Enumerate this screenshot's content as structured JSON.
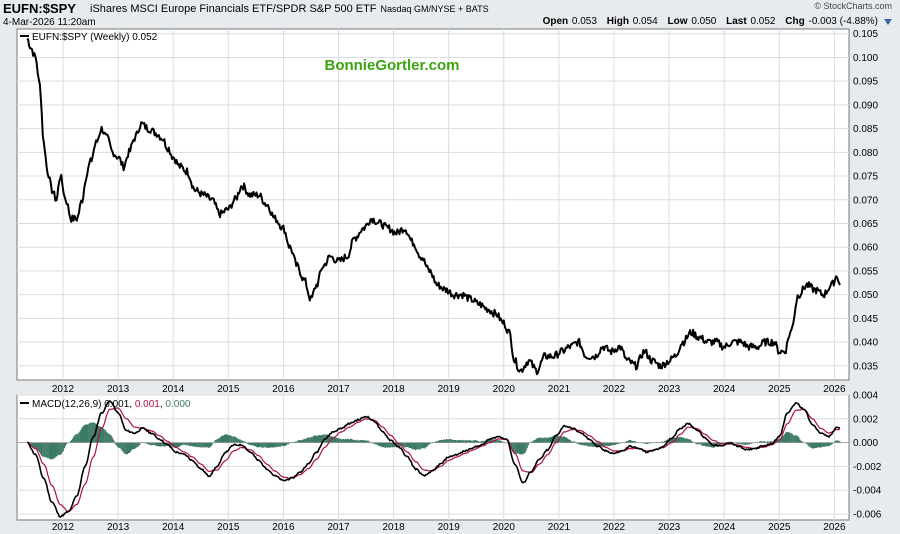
{
  "header": {
    "symbol": "EUFN:$SPY",
    "description": "iShares MSCI Europe Financials ETF/SPDR S&P 500 ETF",
    "exchange": "Nasdaq GM/NYSE + BATS",
    "credit": "© StockCharts.com",
    "datetime": "4-Mar-2026 11:20am",
    "ohlc": {
      "open_label": "Open",
      "open": "0.053",
      "high_label": "High",
      "high": "0.054",
      "low_label": "Low",
      "low": "0.050",
      "last_label": "Last",
      "last": "0.052",
      "chg_label": "Chg",
      "chg": "-0.003 (-4.88%)"
    }
  },
  "price_panel": {
    "legend": "EUFN:$SPY (Weekly) 0.052",
    "watermark": "BonnieGortler.com",
    "watermark_color": "#3aa312"
  },
  "macd_panel": {
    "legend_prefix": "MACD(12,26,9) 0.001, ",
    "legend_signal": "0.001",
    "legend_sep": ", ",
    "legend_hist": "0.000",
    "signal_color": "#b0104a",
    "hist_color": "#3d7a66"
  },
  "chart_data": [
    {
      "type": "line",
      "title": "EUFN:$SPY (Weekly) 0.052",
      "frequency": "weekly",
      "x_tick_labels": [
        "2012",
        "2013",
        "2014",
        "2015",
        "2016",
        "2017",
        "2018",
        "2019",
        "2020",
        "2021",
        "2022",
        "2023",
        "2024",
        "2025",
        "2026"
      ],
      "y_tick_labels": [
        "0.035",
        "0.040",
        "0.045",
        "0.050",
        "0.055",
        "0.060",
        "0.065",
        "0.070",
        "0.075",
        "0.080",
        "0.085",
        "0.090",
        "0.095",
        "0.100",
        "0.105"
      ],
      "ylim": [
        0.032,
        0.106
      ],
      "grid": true,
      "series": [
        {
          "x": [
            2011.35,
            2011.42,
            2011.5,
            2011.58,
            2011.65,
            2011.72,
            2011.8,
            2011.88,
            2011.95,
            2012.05,
            2012.15,
            2012.25,
            2012.35,
            2012.42,
            2012.5,
            2012.6,
            2012.7,
            2012.8,
            2012.9,
            2013.0,
            2013.1,
            2013.2,
            2013.3,
            2013.42,
            2013.55,
            2013.7,
            2013.8,
            2013.9,
            2014.0,
            2014.12,
            2014.25,
            2014.4,
            2014.55,
            2014.7,
            2014.85,
            2015.0,
            2015.12,
            2015.25,
            2015.4,
            2015.55,
            2015.7,
            2015.85,
            2016.0,
            2016.12,
            2016.25,
            2016.38,
            2016.5,
            2016.6,
            2016.72,
            2016.85,
            2017.0,
            2017.15,
            2017.3,
            2017.45,
            2017.6,
            2017.75,
            2017.9,
            2018.05,
            2018.2,
            2018.35,
            2018.5,
            2018.65,
            2018.8,
            2018.95,
            2019.1,
            2019.25,
            2019.4,
            2019.55,
            2019.7,
            2019.85,
            2020.0,
            2020.1,
            2020.2,
            2020.3,
            2020.45,
            2020.6,
            2020.75,
            2020.9,
            2021.05,
            2021.2,
            2021.35,
            2021.5,
            2021.65,
            2021.8,
            2021.95,
            2022.1,
            2022.25,
            2022.4,
            2022.55,
            2022.7,
            2022.85,
            2023.0,
            2023.1,
            2023.25,
            2023.4,
            2023.55,
            2023.7,
            2023.85,
            2024.0,
            2024.15,
            2024.3,
            2024.45,
            2024.6,
            2024.75,
            2024.9,
            2025.0,
            2025.1,
            2025.2,
            2025.35,
            2025.5,
            2025.65,
            2025.8,
            2025.95,
            2026.05,
            2026.1
          ],
          "values": [
            0.104,
            0.102,
            0.1,
            0.094,
            0.082,
            0.076,
            0.072,
            0.07,
            0.075,
            0.07,
            0.066,
            0.066,
            0.07,
            0.075,
            0.078,
            0.082,
            0.085,
            0.083,
            0.08,
            0.079,
            0.077,
            0.08,
            0.083,
            0.086,
            0.085,
            0.084,
            0.083,
            0.081,
            0.079,
            0.077,
            0.076,
            0.072,
            0.071,
            0.07,
            0.067,
            0.068,
            0.07,
            0.073,
            0.071,
            0.071,
            0.069,
            0.066,
            0.064,
            0.06,
            0.056,
            0.053,
            0.049,
            0.052,
            0.056,
            0.058,
            0.057,
            0.058,
            0.062,
            0.064,
            0.066,
            0.065,
            0.064,
            0.063,
            0.064,
            0.061,
            0.058,
            0.055,
            0.052,
            0.051,
            0.05,
            0.05,
            0.049,
            0.048,
            0.047,
            0.046,
            0.044,
            0.042,
            0.036,
            0.034,
            0.036,
            0.034,
            0.037,
            0.037,
            0.038,
            0.039,
            0.04,
            0.037,
            0.037,
            0.039,
            0.038,
            0.039,
            0.036,
            0.035,
            0.038,
            0.036,
            0.035,
            0.036,
            0.037,
            0.04,
            0.042,
            0.041,
            0.04,
            0.04,
            0.039,
            0.04,
            0.04,
            0.039,
            0.039,
            0.04,
            0.04,
            0.038,
            0.038,
            0.042,
            0.05,
            0.052,
            0.051,
            0.05,
            0.052,
            0.054,
            0.052
          ]
        }
      ]
    },
    {
      "type": "line",
      "title": "MACD(12,26,9) 0.001, 0.001, 0.000",
      "x_tick_labels": [
        "2012",
        "2013",
        "2014",
        "2015",
        "2016",
        "2017",
        "2018",
        "2019",
        "2020",
        "2021",
        "2022",
        "2023",
        "2024",
        "2025",
        "2026"
      ],
      "y_tick_labels": [
        "0.004",
        "0.002",
        "0.000",
        "-0.002",
        "-0.004",
        "-0.006"
      ],
      "ylim": [
        -0.0065,
        0.004
      ],
      "grid": true,
      "x": [
        2011.35,
        2011.5,
        2011.65,
        2011.8,
        2011.95,
        2012.1,
        2012.25,
        2012.4,
        2012.55,
        2012.7,
        2012.85,
        2013.0,
        2013.15,
        2013.3,
        2013.45,
        2013.6,
        2013.75,
        2013.9,
        2014.05,
        2014.2,
        2014.35,
        2014.5,
        2014.65,
        2014.8,
        2014.95,
        2015.1,
        2015.25,
        2015.4,
        2015.55,
        2015.7,
        2015.85,
        2016.0,
        2016.15,
        2016.3,
        2016.45,
        2016.6,
        2016.75,
        2016.9,
        2017.05,
        2017.2,
        2017.35,
        2017.5,
        2017.65,
        2017.8,
        2017.95,
        2018.1,
        2018.25,
        2018.4,
        2018.55,
        2018.7,
        2018.85,
        2019.0,
        2019.15,
        2019.3,
        2019.45,
        2019.6,
        2019.75,
        2019.9,
        2020.05,
        2020.2,
        2020.35,
        2020.5,
        2020.65,
        2020.8,
        2020.95,
        2021.1,
        2021.25,
        2021.4,
        2021.55,
        2021.7,
        2021.85,
        2022.0,
        2022.15,
        2022.3,
        2022.45,
        2022.6,
        2022.75,
        2022.9,
        2023.05,
        2023.2,
        2023.35,
        2023.5,
        2023.65,
        2023.8,
        2023.95,
        2024.1,
        2024.25,
        2024.4,
        2024.55,
        2024.7,
        2024.85,
        2025.0,
        2025.15,
        2025.3,
        2025.45,
        2025.6,
        2025.75,
        2025.9,
        2026.05,
        2026.1
      ],
      "series": [
        {
          "name": "MACD",
          "values": [
            0.0,
            -0.001,
            -0.003,
            -0.005,
            -0.0062,
            -0.0058,
            -0.0045,
            -0.002,
            0.0005,
            0.0025,
            0.0035,
            0.0025,
            0.001,
            0.0008,
            0.0012,
            0.0008,
            0.0003,
            -0.0002,
            -0.0008,
            -0.001,
            -0.0015,
            -0.0022,
            -0.0028,
            -0.002,
            -0.0008,
            -0.0002,
            -0.0002,
            -0.0008,
            -0.0015,
            -0.0022,
            -0.0028,
            -0.0032,
            -0.003,
            -0.0025,
            -0.0018,
            -0.0008,
            0.0003,
            0.0009,
            0.0012,
            0.0016,
            0.0019,
            0.0022,
            0.0018,
            0.0009,
            0.0002,
            -0.0004,
            -0.0012,
            -0.0022,
            -0.0028,
            -0.0024,
            -0.0018,
            -0.0012,
            -0.001,
            -0.0007,
            -0.0004,
            -0.0002,
            0.0003,
            0.0005,
            0.0003,
            -0.0018,
            -0.0034,
            -0.0024,
            -0.0014,
            -0.0006,
            0.0006,
            0.0014,
            0.0012,
            0.0008,
            0.0003,
            -0.0003,
            -0.0007,
            -0.0009,
            -0.0007,
            -0.0003,
            -0.0005,
            -0.0008,
            -0.0006,
            -0.0003,
            0.0004,
            0.0012,
            0.0016,
            0.0011,
            0.0004,
            -0.0002,
            -0.0003,
            0.0,
            -0.0003,
            -0.0006,
            -0.0005,
            -0.0003,
            -0.0001,
            0.0005,
            0.0025,
            0.0033,
            0.0028,
            0.0015,
            0.0008,
            0.0005,
            0.0013,
            0.0012
          ]
        },
        {
          "name": "Signal",
          "values": [
            0.0,
            -0.0005,
            -0.0018,
            -0.0036,
            -0.0052,
            -0.0058,
            -0.0052,
            -0.0035,
            -0.0012,
            0.0012,
            0.0028,
            0.0029,
            0.002,
            0.0013,
            0.0012,
            0.001,
            0.0006,
            0.0001,
            -0.0004,
            -0.0008,
            -0.0012,
            -0.0018,
            -0.0024,
            -0.0023,
            -0.0015,
            -0.0007,
            -0.0004,
            -0.0006,
            -0.0011,
            -0.0018,
            -0.0024,
            -0.0029,
            -0.003,
            -0.0027,
            -0.0022,
            -0.0014,
            -0.0004,
            0.0004,
            0.0009,
            0.0013,
            0.0017,
            0.002,
            0.0019,
            0.0013,
            0.0006,
            -0.0001,
            -0.0008,
            -0.0016,
            -0.0023,
            -0.0024,
            -0.002,
            -0.0015,
            -0.0012,
            -0.0009,
            -0.0006,
            -0.0003,
            0.0,
            0.0003,
            0.0003,
            -0.0009,
            -0.0024,
            -0.0025,
            -0.0018,
            -0.001,
            0.0,
            0.0009,
            0.0011,
            0.001,
            0.0006,
            0.0001,
            -0.0004,
            -0.0007,
            -0.0007,
            -0.0005,
            -0.0005,
            -0.0007,
            -0.0006,
            -0.0004,
            0.0,
            0.0007,
            0.0013,
            0.0012,
            0.0007,
            0.0002,
            -0.0001,
            -0.0001,
            -0.0002,
            -0.0004,
            -0.0005,
            -0.0004,
            -0.0002,
            0.0002,
            0.0016,
            0.0027,
            0.0028,
            0.002,
            0.0012,
            0.0008,
            0.0011,
            0.0011
          ]
        }
      ]
    }
  ]
}
